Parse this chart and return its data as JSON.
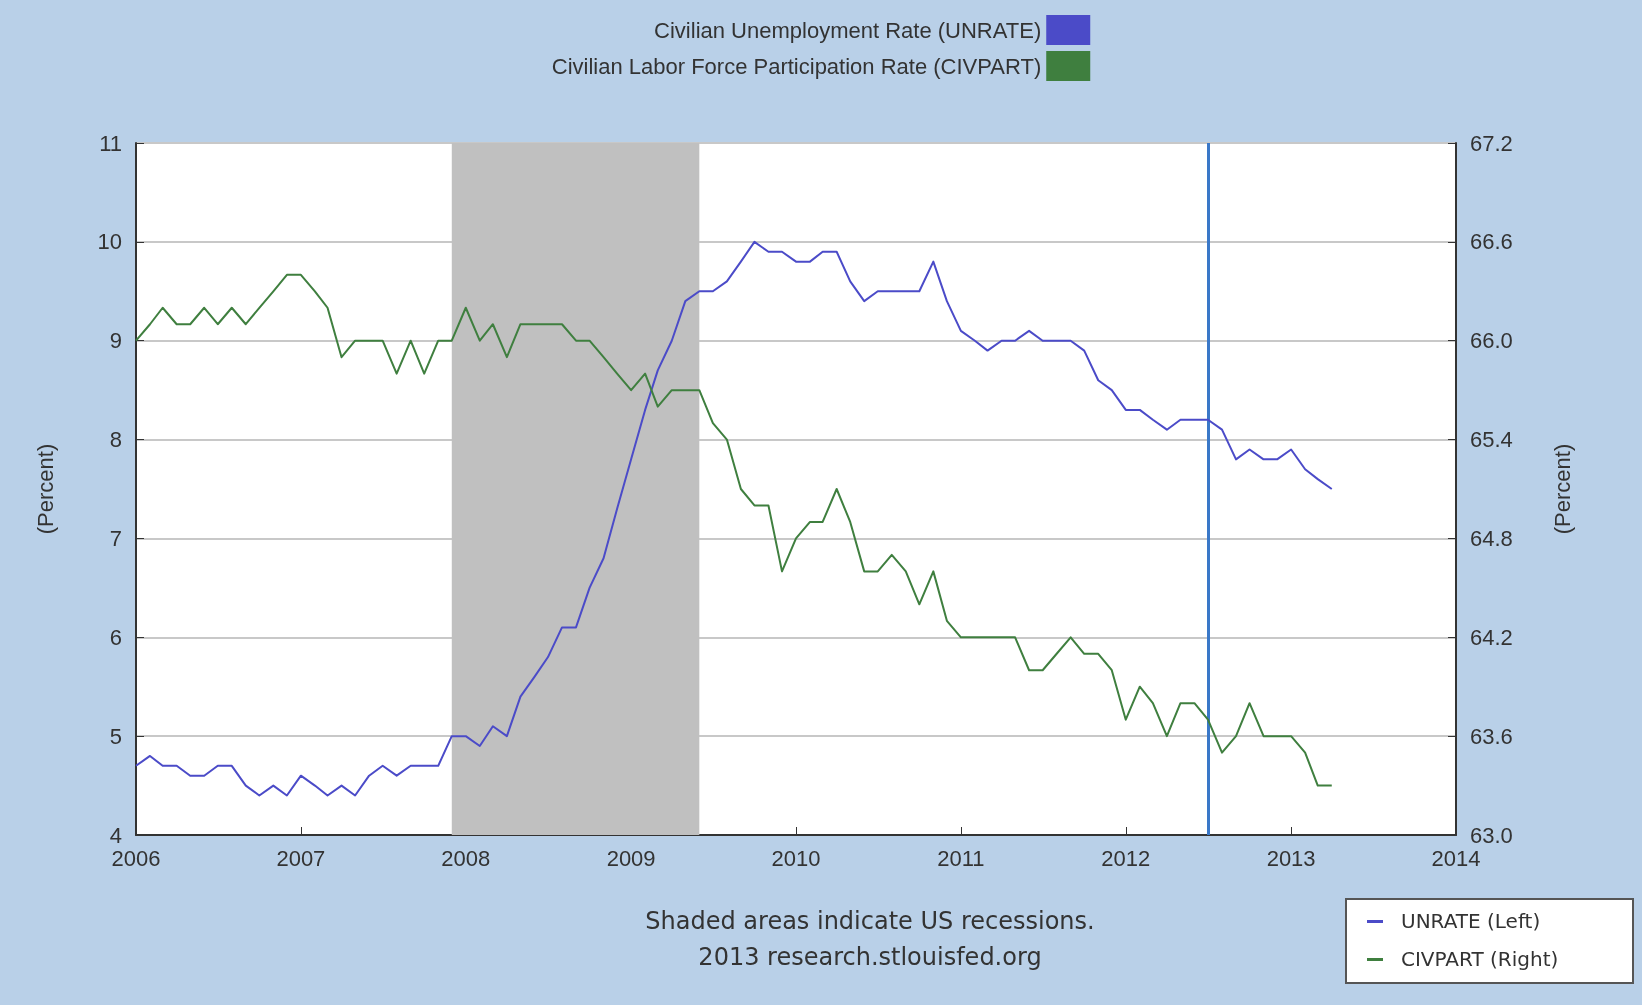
{
  "chart_data": {
    "type": "line",
    "x": [
      "2006-01",
      "2006-02",
      "2006-03",
      "2006-04",
      "2006-05",
      "2006-06",
      "2006-07",
      "2006-08",
      "2006-09",
      "2006-10",
      "2006-11",
      "2006-12",
      "2007-01",
      "2007-02",
      "2007-03",
      "2007-04",
      "2007-05",
      "2007-06",
      "2007-07",
      "2007-08",
      "2007-09",
      "2007-10",
      "2007-11",
      "2007-12",
      "2008-01",
      "2008-02",
      "2008-03",
      "2008-04",
      "2008-05",
      "2008-06",
      "2008-07",
      "2008-08",
      "2008-09",
      "2008-10",
      "2008-11",
      "2008-12",
      "2009-01",
      "2009-02",
      "2009-03",
      "2009-04",
      "2009-05",
      "2009-06",
      "2009-07",
      "2009-08",
      "2009-09",
      "2009-10",
      "2009-11",
      "2009-12",
      "2010-01",
      "2010-02",
      "2010-03",
      "2010-04",
      "2010-05",
      "2010-06",
      "2010-07",
      "2010-08",
      "2010-09",
      "2010-10",
      "2010-11",
      "2010-12",
      "2011-01",
      "2011-02",
      "2011-03",
      "2011-04",
      "2011-05",
      "2011-06",
      "2011-07",
      "2011-08",
      "2011-09",
      "2011-10",
      "2011-11",
      "2011-12",
      "2012-01",
      "2012-02",
      "2012-03",
      "2012-04",
      "2012-05",
      "2012-06",
      "2012-07",
      "2012-08",
      "2012-09",
      "2012-10",
      "2012-11",
      "2012-12",
      "2013-01",
      "2013-02",
      "2013-03",
      "2013-04"
    ],
    "series": [
      {
        "name": "Civilian Unemployment Rate (UNRATE)",
        "color": "#4b4bc8",
        "values": [
          4.7,
          4.8,
          4.7,
          4.7,
          4.6,
          4.6,
          4.7,
          4.7,
          4.5,
          4.4,
          4.5,
          4.4,
          4.6,
          4.5,
          4.4,
          4.5,
          4.4,
          4.6,
          4.7,
          4.6,
          4.7,
          4.7,
          4.7,
          5.0,
          5.0,
          4.9,
          5.1,
          5.0,
          5.4,
          5.6,
          5.8,
          6.1,
          6.1,
          6.5,
          6.8,
          7.3,
          7.8,
          8.3,
          8.7,
          9.0,
          9.4,
          9.5,
          9.5,
          9.6,
          9.8,
          10.0,
          9.9,
          9.9,
          9.8,
          9.8,
          9.9,
          9.9,
          9.6,
          9.4,
          9.5,
          9.5,
          9.5,
          9.5,
          9.8,
          9.4,
          9.1,
          9.0,
          8.9,
          9.0,
          9.0,
          9.1,
          9.0,
          9.0,
          9.0,
          8.9,
          8.6,
          8.5,
          8.3,
          8.3,
          8.2,
          8.1,
          8.2,
          8.2,
          8.2,
          8.1,
          7.8,
          7.9,
          7.8,
          7.8,
          7.9,
          7.7,
          7.6,
          7.5
        ]
      },
      {
        "name": "Civilian Labor Force Participation Rate (CIVPART)",
        "color": "#3f7f3f",
        "axis": "y2",
        "values": [
          66.0,
          66.1,
          66.2,
          66.1,
          66.1,
          66.2,
          66.1,
          66.2,
          66.1,
          66.2,
          66.3,
          66.4,
          66.4,
          66.3,
          66.2,
          65.9,
          66.0,
          66.0,
          66.0,
          65.8,
          66.0,
          65.8,
          66.0,
          66.0,
          66.2,
          66.0,
          66.1,
          65.9,
          66.1,
          66.1,
          66.1,
          66.1,
          66.0,
          66.0,
          65.9,
          65.8,
          65.7,
          65.8,
          65.6,
          65.7,
          65.7,
          65.7,
          65.5,
          65.4,
          65.1,
          65.0,
          65.0,
          64.6,
          64.8,
          64.9,
          64.9,
          65.1,
          64.9,
          64.6,
          64.6,
          64.7,
          64.6,
          64.4,
          64.6,
          64.3,
          64.2,
          64.2,
          64.2,
          64.2,
          64.2,
          64.0,
          64.0,
          64.1,
          64.2,
          64.1,
          64.1,
          64.0,
          63.7,
          63.9,
          63.8,
          63.6,
          63.8,
          63.8,
          63.7,
          63.5,
          63.6,
          63.8,
          63.6,
          63.6,
          63.6,
          63.5,
          63.3,
          63.3
        ]
      }
    ],
    "xlim": [
      "2006",
      "2014"
    ],
    "xticks": [
      {
        "value": "2006",
        "label": "2006"
      },
      {
        "value": "2007",
        "label": "2007"
      },
      {
        "value": "2008",
        "label": "2008"
      },
      {
        "value": "2009",
        "label": "2009"
      },
      {
        "value": "2010",
        "label": "2010"
      },
      {
        "value": "2011",
        "label": "2011"
      },
      {
        "value": "2012",
        "label": "2012"
      },
      {
        "value": "2013",
        "label": "2013"
      },
      {
        "value": "2014",
        "label": "2014"
      }
    ],
    "ylim": [
      4,
      11
    ],
    "yticks": [
      4,
      5,
      6,
      7,
      8,
      9,
      10,
      11
    ],
    "y2lim": [
      63,
      67.2
    ],
    "y2ticks": [
      {
        "value": 63,
        "label": "63.0"
      },
      63.6,
      64.2,
      64.8,
      65.4,
      {
        "value": 66,
        "label": "66.0"
      },
      66.6,
      67.2
    ],
    "ylabel": "(Percent)",
    "y2label": "(Percent)",
    "bands": [
      {
        "axis": "x",
        "from": "2007-12",
        "to": "2009-06",
        "color": "#c0c0c0"
      }
    ],
    "ref_lines": [
      {
        "axis": "x",
        "value": "2012-07",
        "color": "#3a78c8"
      }
    ],
    "annotations": [
      "Shaded areas indicate US recessions.",
      "2013 research.stlouisfed.org",
      "UNRATE (Left)",
      "CIVPART (Right)"
    ],
    "grid": "y",
    "legend": "top",
    "line_style": "solid",
    "marker": "none"
  }
}
